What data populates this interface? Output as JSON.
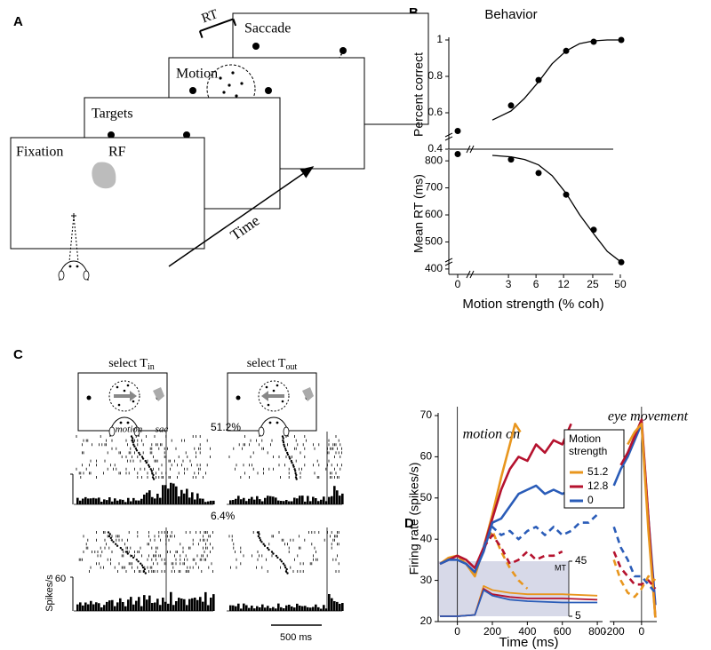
{
  "panel_labels": [
    "A",
    "B",
    "C",
    "D"
  ],
  "panel_a": {
    "screens": [
      "Fixation",
      "Targets",
      "Motion",
      "Saccade"
    ],
    "rf": "RF",
    "rt": "RT",
    "time": "Time"
  },
  "panel_c": {
    "select_in": {
      "text": "select T",
      "sub": "in"
    },
    "select_out": {
      "text": "select T",
      "sub": "out"
    },
    "motion": "motion",
    "sac": "sac",
    "coherences": [
      "51.2%",
      "6.4%"
    ],
    "ylabel": "Spikes/s",
    "scale_tick": "60",
    "scale_bar": "500 ms"
  },
  "chart_data": [
    {
      "type": "line",
      "title": "Behavior",
      "ylabel": "Percent correct",
      "xscale": "log",
      "ylim": [
        0.4,
        1
      ],
      "yticks": [
        0.4,
        0.6,
        0.8,
        1
      ],
      "series": [
        {
          "color": "#000000",
          "markers": true,
          "x": [
            0,
            3.2,
            6.4,
            12.8,
            25.6,
            51.2
          ],
          "values": [
            0.5,
            0.64,
            0.78,
            0.94,
            0.99,
            1.0
          ]
        },
        {
          "color": "#000000",
          "x": [
            2,
            3.2,
            4.5,
            6.4,
            9,
            12.8,
            18,
            25.6,
            36,
            51.2
          ],
          "values": [
            0.56,
            0.61,
            0.68,
            0.77,
            0.87,
            0.94,
            0.98,
            0.995,
            1,
            1
          ]
        }
      ]
    },
    {
      "type": "line",
      "ylabel": "Mean RT (ms)",
      "xlabel": "Motion strength (% coh)",
      "xscale": "log",
      "xticks": [
        0,
        3,
        6,
        12,
        25,
        50
      ],
      "ylim": [
        380,
        830
      ],
      "yticks": [
        400,
        500,
        600,
        700,
        800
      ],
      "series": [
        {
          "color": "#000000",
          "markers": true,
          "x": [
            0,
            3.2,
            6.4,
            12.8,
            25.6,
            51.2
          ],
          "values": [
            825,
            805,
            755,
            675,
            545,
            425
          ]
        },
        {
          "color": "#000000",
          "x": [
            2,
            3.2,
            4.5,
            6.4,
            9,
            12.8,
            18,
            25.6,
            36,
            51.2
          ],
          "values": [
            820,
            815,
            805,
            785,
            745,
            680,
            600,
            530,
            465,
            425
          ]
        }
      ]
    },
    {
      "type": "line",
      "ylabel": "Firing rate (spikes/s)",
      "xlabel": "Time (ms)",
      "annotation": "motion on",
      "inset_label": "MT",
      "legend_title": "Motion strength",
      "xlim": [
        -110,
        830
      ],
      "xticks": [
        0,
        200,
        400,
        600,
        800
      ],
      "ylim": [
        20,
        70
      ],
      "yticks": [
        20,
        30,
        40,
        50,
        60,
        70
      ],
      "y2lim": [
        5,
        45
      ],
      "y2ticks": [
        5,
        45
      ],
      "series": [
        {
          "name": "51.2",
          "color": "#e8961e",
          "x": [
            -100,
            -50,
            0,
            50,
            100,
            150,
            200,
            250,
            300,
            330,
            360
          ],
          "values": [
            34,
            35.5,
            36,
            34,
            31,
            38,
            46,
            55,
            63,
            68,
            66
          ]
        },
        {
          "name": "12.8",
          "color": "#b5122e",
          "x": [
            -100,
            -50,
            0,
            50,
            100,
            150,
            200,
            250,
            300,
            350,
            400,
            450,
            500,
            550,
            600,
            650
          ],
          "values": [
            34,
            35,
            36,
            35,
            33,
            38,
            45,
            52,
            57,
            60,
            59,
            63,
            61,
            64,
            63,
            68
          ]
        },
        {
          "name": "0",
          "color": "#2a5cb8",
          "x": [
            -100,
            -50,
            0,
            50,
            100,
            150,
            200,
            250,
            300,
            350,
            400,
            450,
            500,
            550,
            600,
            650,
            700,
            750,
            800
          ],
          "values": [
            34,
            35,
            35,
            34,
            32,
            37,
            44,
            45,
            48,
            51,
            52,
            53,
            51,
            52,
            51,
            52,
            50,
            54,
            56
          ]
        },
        {
          "color": "#e8961e",
          "dashed": true,
          "x": [
            150,
            200,
            250,
            300,
            350,
            400
          ],
          "values": [
            38,
            42,
            37,
            33,
            30,
            28
          ]
        },
        {
          "color": "#b5122e",
          "dashed": true,
          "x": [
            150,
            200,
            250,
            300,
            350,
            400,
            450,
            500,
            550,
            600
          ],
          "values": [
            38,
            41,
            38,
            34,
            35,
            37,
            35,
            36,
            36,
            37
          ]
        },
        {
          "color": "#2a5cb8",
          "dashed": true,
          "x": [
            150,
            200,
            250,
            300,
            350,
            400,
            450,
            500,
            550,
            600,
            650,
            700,
            750,
            800
          ],
          "values": [
            38,
            43,
            41,
            42,
            40,
            42,
            43,
            41,
            43,
            41,
            42,
            44,
            44,
            46
          ]
        },
        {
          "color": "#e8961e",
          "axis": "y2",
          "x": [
            -100,
            0,
            100,
            150,
            200,
            300,
            400,
            600,
            800
          ],
          "values": [
            5,
            5,
            6,
            27,
            24,
            22,
            21,
            21,
            20
          ]
        },
        {
          "color": "#b5122e",
          "axis": "y2",
          "x": [
            -100,
            0,
            100,
            150,
            200,
            300,
            400,
            600,
            800
          ],
          "values": [
            5,
            5,
            6,
            25,
            21,
            19,
            18,
            18,
            17
          ]
        },
        {
          "color": "#2a5cb8",
          "axis": "y2",
          "x": [
            -100,
            0,
            100,
            150,
            200,
            300,
            400,
            600,
            800
          ],
          "values": [
            5,
            5,
            6,
            24,
            20,
            17,
            16,
            15,
            15
          ]
        }
      ]
    },
    {
      "type": "line",
      "annotation": "eye movement",
      "xlim": [
        -230,
        110
      ],
      "xticks": [
        -200,
        0
      ],
      "ylim": [
        20,
        70
      ],
      "x": [
        -200,
        -150,
        -100,
        -50,
        0,
        50,
        100
      ],
      "series": [
        {
          "color": "#2a5cb8",
          "values": [
            53,
            57,
            60,
            64,
            68,
            45,
            24
          ]
        },
        {
          "color": "#b5122e",
          "values": [
            null,
            58,
            61,
            65,
            69,
            45,
            21
          ]
        },
        {
          "color": "#e8961e",
          "values": [
            null,
            null,
            63,
            66,
            68,
            42,
            21
          ]
        },
        {
          "color": "#2a5cb8",
          "dashed": true,
          "values": [
            43,
            38,
            35,
            31,
            31,
            29,
            27
          ]
        },
        {
          "color": "#b5122e",
          "dashed": true,
          "values": [
            37,
            33,
            31,
            29,
            29,
            30,
            28
          ]
        },
        {
          "color": "#e8961e",
          "dashed": true,
          "values": [
            35,
            30,
            27,
            26,
            28,
            31,
            30
          ]
        }
      ]
    }
  ]
}
